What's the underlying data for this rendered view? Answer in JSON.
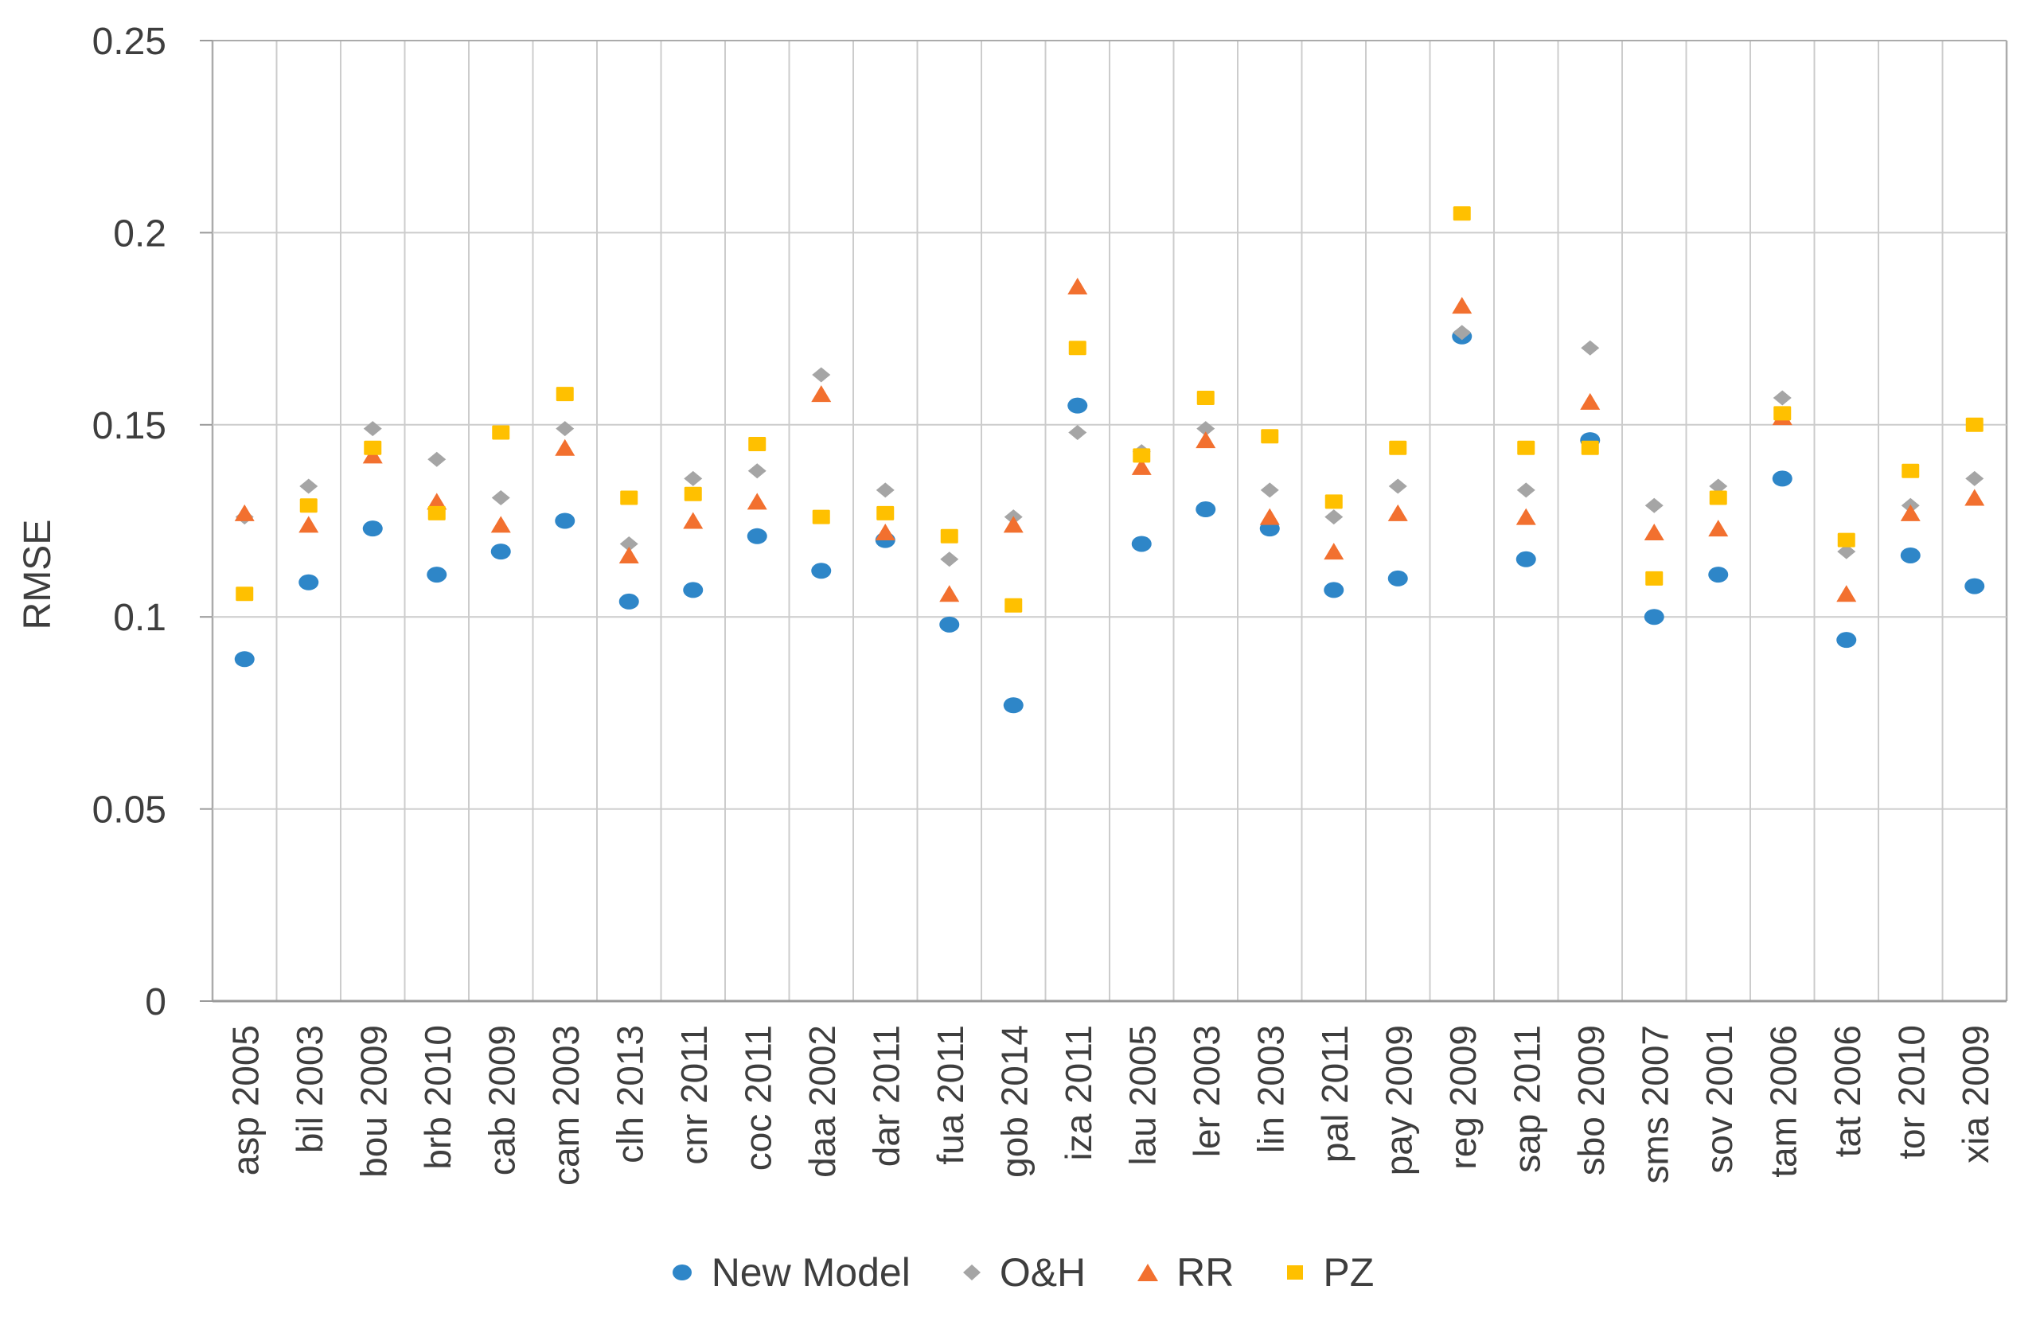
{
  "chart_data": {
    "type": "scatter",
    "title": "",
    "xlabel": "",
    "ylabel": "RMSE",
    "ylim": [
      0,
      0.25
    ],
    "ytick_values": [
      0,
      0.05,
      0.1,
      0.15,
      0.2,
      0.25
    ],
    "ytick_labels": [
      "0",
      "0.05",
      "0.1",
      "0.15",
      "0.2",
      "0.25"
    ],
    "grid": "both",
    "legend_position": "bottom",
    "categories": [
      "asp 2005",
      "bil 2003",
      "bou 2009",
      "brb 2010",
      "cab 2009",
      "cam 2003",
      "clh 2013",
      "cnr 2011",
      "coc 2011",
      "daa 2002",
      "dar 2011",
      "fua 2011",
      "gob 2014",
      "iza 2011",
      "lau 2005",
      "ler 2003",
      "lin 2003",
      "pal 2011",
      "pay 2009",
      "reg 2009",
      "sap 2011",
      "sbo 2009",
      "sms 2007",
      "sov 2001",
      "tam 2006",
      "tat 2006",
      "tor 2010",
      "xia 2009"
    ],
    "series": [
      {
        "name": "New Model",
        "marker": "circle",
        "color": "#2E86C8",
        "values": [
          0.089,
          0.109,
          0.123,
          0.111,
          0.117,
          0.125,
          0.104,
          0.107,
          0.121,
          0.112,
          0.12,
          0.098,
          0.077,
          0.155,
          0.119,
          0.128,
          0.123,
          0.107,
          0.11,
          0.173,
          0.115,
          0.146,
          0.1,
          0.111,
          0.136,
          0.094,
          0.116,
          0.108
        ]
      },
      {
        "name": "O&H",
        "marker": "diamond",
        "color": "#A5A5A5",
        "values": [
          0.126,
          0.134,
          0.149,
          0.141,
          0.131,
          0.149,
          0.119,
          0.136,
          0.138,
          0.163,
          0.133,
          0.115,
          0.126,
          0.148,
          0.143,
          0.149,
          0.133,
          0.126,
          0.134,
          0.174,
          0.133,
          0.17,
          0.129,
          0.134,
          0.157,
          0.117,
          0.129,
          0.136
        ]
      },
      {
        "name": "RR",
        "marker": "triangle",
        "color": "#F2702F",
        "values": [
          0.127,
          0.124,
          0.142,
          0.13,
          0.124,
          0.144,
          0.116,
          0.125,
          0.13,
          0.158,
          0.122,
          0.106,
          0.124,
          0.186,
          0.139,
          0.146,
          0.126,
          0.117,
          0.127,
          0.181,
          0.126,
          0.156,
          0.122,
          0.123,
          0.152,
          0.106,
          0.127,
          0.131
        ]
      },
      {
        "name": "PZ",
        "marker": "square",
        "color": "#FFC000",
        "values": [
          0.106,
          0.129,
          0.144,
          0.127,
          0.148,
          0.158,
          0.131,
          0.132,
          0.145,
          0.126,
          0.127,
          0.121,
          0.103,
          0.17,
          0.142,
          0.157,
          0.147,
          0.13,
          0.144,
          0.205,
          0.144,
          0.144,
          0.11,
          0.131,
          0.153,
          0.12,
          0.138,
          0.15
        ]
      }
    ],
    "colors": {
      "grid_line": "#cccccc",
      "border_line": "#ababab",
      "axis_line": "#9a9a9a",
      "text": "#3e3e3e"
    }
  }
}
